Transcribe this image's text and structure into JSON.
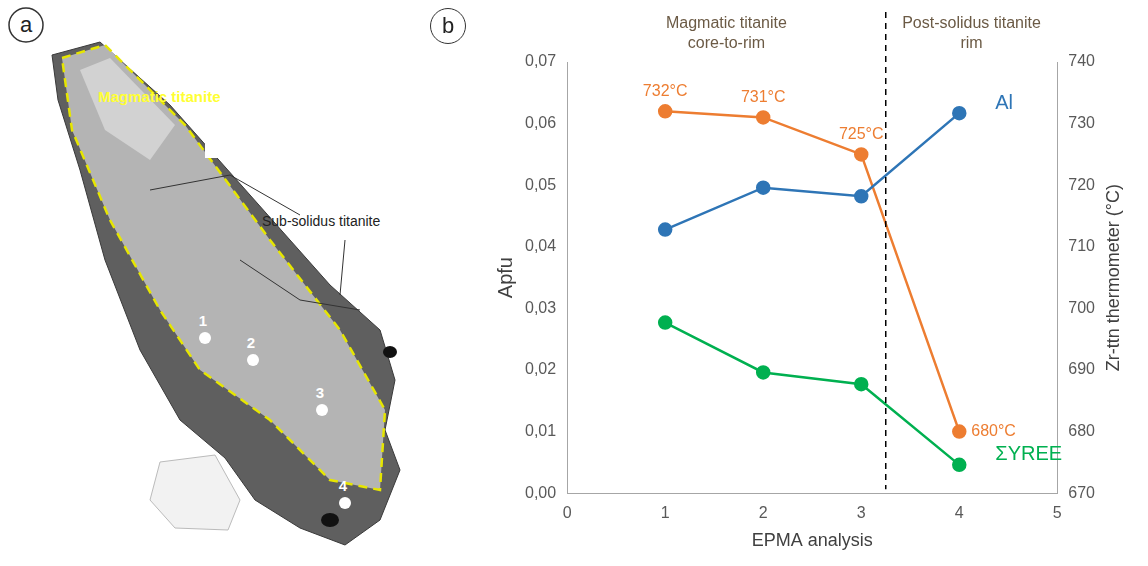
{
  "panel_a": {
    "letter": "a",
    "magmatic_label": "Magmatic titanite",
    "subsolidus_label": "Sub-solidus titanite",
    "points": [
      "1",
      "2",
      "3",
      "4"
    ]
  },
  "chart_data": {
    "letter": "b",
    "type": "line",
    "x_label": "EPMA analysis",
    "y_label": "Apfu",
    "y2_label": "Zr-ttn thermometer (°C)",
    "x": [
      1,
      2,
      3,
      4
    ],
    "xlim": [
      0,
      5
    ],
    "xticks": [
      0,
      1,
      2,
      3,
      4,
      5
    ],
    "ylim": [
      0,
      0.07
    ],
    "yticks": [
      {
        "value": 0,
        "label": "0,00"
      },
      {
        "value": 0.01,
        "label": "0,01"
      },
      {
        "value": 0.02,
        "label": "0,02"
      },
      {
        "value": 0.03,
        "label": "0,03"
      },
      {
        "value": 0.04,
        "label": "0,04"
      },
      {
        "value": 0.05,
        "label": "0,05"
      },
      {
        "value": 0.06,
        "label": "0,06"
      },
      {
        "value": 0.07,
        "label": "0,07"
      }
    ],
    "y2lim": [
      670,
      740
    ],
    "y2ticks": [
      670,
      680,
      690,
      700,
      710,
      720,
      730,
      740
    ],
    "grid": false,
    "data_labels": true,
    "series": [
      {
        "name": "Al",
        "color": "#2E75B6",
        "marker": "circle",
        "values": [
          0.0428,
          0.0496,
          0.0482,
          0.0617
        ]
      },
      {
        "name": "ΣYREE",
        "color": "#00B050",
        "marker": "circle",
        "values": [
          0.0277,
          0.0196,
          0.0177,
          0.0046
        ]
      },
      {
        "color": "#ED7D31",
        "marker": "circle",
        "axis": "y2",
        "values": [
          732,
          731,
          725,
          680
        ],
        "value_labels": [
          "732°C",
          "731°C",
          "725°C",
          "680°C"
        ]
      }
    ],
    "annotations": [
      "Magmatic titanite core-to-rim",
      "Post-solidus titanite rim"
    ],
    "divider_x": 3.25
  }
}
